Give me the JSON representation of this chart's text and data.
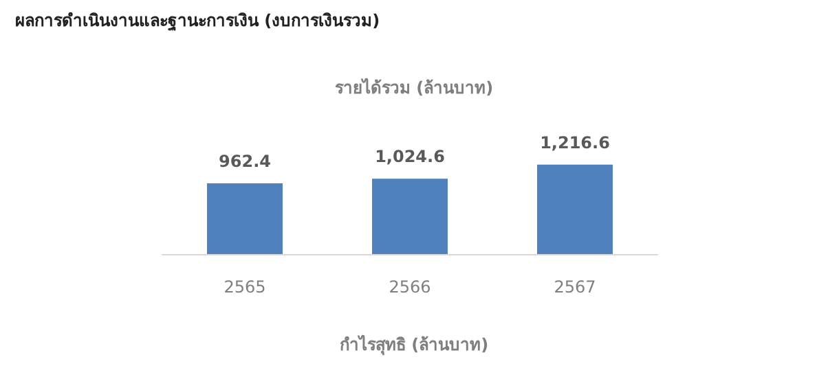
{
  "chart_data": {
    "type": "bar",
    "title": "ผลการดำเนินงานและฐานะการเงิน (งบการเงินรวม)",
    "subtitle": "รายได้รวม (ล้านบาท)",
    "annotations": [
      "กำไรสุทธิ (ล้านบาท)"
    ],
    "categories": [
      "2565",
      "2566",
      "2567"
    ],
    "values": [
      962.4,
      1024.6,
      1216.6
    ],
    "value_labels": [
      "962.4",
      "1,024.6",
      "1,216.6"
    ],
    "color": "#4f81bd"
  }
}
